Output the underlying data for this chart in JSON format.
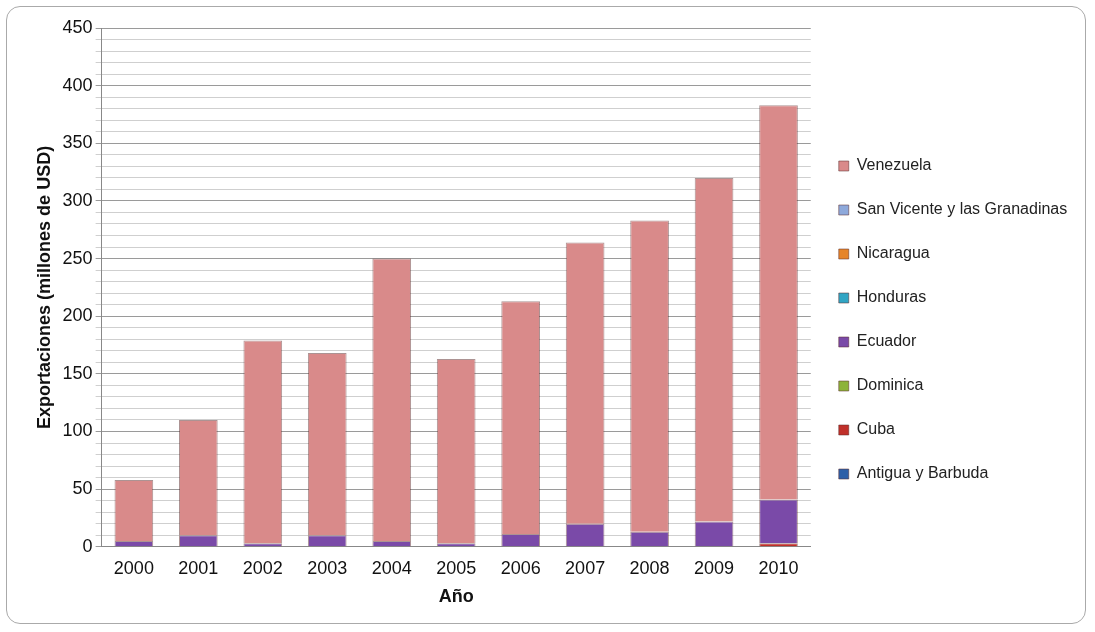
{
  "chart_data": {
    "type": "bar",
    "stacked": true,
    "xlabel": "Año",
    "ylabel": "Exportaciones (millones de USD)",
    "categories": [
      "2000",
      "2001",
      "2002",
      "2003",
      "2004",
      "2005",
      "2006",
      "2007",
      "2008",
      "2009",
      "2010"
    ],
    "series": [
      {
        "name": "Antigua y Barbuda",
        "color": "#2e5fa8",
        "values": [
          0,
          0,
          0,
          0,
          0,
          0,
          0,
          0,
          0,
          0,
          0
        ]
      },
      {
        "name": "Cuba",
        "color": "#c0302a",
        "values": [
          0,
          0,
          0,
          0,
          0,
          0,
          0,
          0,
          0,
          0,
          3
        ]
      },
      {
        "name": "Dominica",
        "color": "#8db33a",
        "values": [
          0,
          0,
          0,
          0,
          0,
          0,
          0,
          0,
          0,
          0,
          0
        ]
      },
      {
        "name": "Ecuador",
        "color": "#7a4aa8",
        "values": [
          5,
          10,
          3,
          10,
          5,
          3,
          11,
          20,
          13,
          22,
          38
        ]
      },
      {
        "name": "Honduras",
        "color": "#31a5c4",
        "values": [
          0,
          0,
          0,
          0,
          0,
          0,
          0,
          0,
          0,
          0,
          0
        ]
      },
      {
        "name": "Nicaragua",
        "color": "#e6842a",
        "values": [
          0,
          0,
          0,
          0,
          0,
          0,
          0,
          0,
          0,
          0,
          0
        ]
      },
      {
        "name": "San Vicente y las Granadinas",
        "color": "#8ea9db",
        "values": [
          0,
          0,
          0,
          0,
          0,
          0,
          0,
          0,
          0,
          0,
          0
        ]
      },
      {
        "name": "Venezuela",
        "color": "#d98a8a",
        "values": [
          53,
          100,
          176,
          158,
          245,
          160,
          202,
          244,
          270,
          298,
          342
        ]
      }
    ],
    "ylim": [
      0,
      450
    ],
    "yticks": [
      0,
      {
        "value": 10,
        "label": null
      },
      {
        "value": 20,
        "label": null
      },
      {
        "value": 30,
        "label": null
      },
      {
        "value": 40,
        "label": null
      },
      50,
      {
        "value": 60,
        "label": null
      },
      {
        "value": 70,
        "label": null
      },
      {
        "value": 80,
        "label": null
      },
      {
        "value": 90,
        "label": null
      },
      100,
      {
        "value": 110,
        "label": null
      },
      {
        "value": 120,
        "label": null
      },
      {
        "value": 130,
        "label": null
      },
      {
        "value": 140,
        "label": null
      },
      150,
      {
        "value": 160,
        "label": null
      },
      {
        "value": 170,
        "label": null
      },
      {
        "value": 180,
        "label": null
      },
      {
        "value": 190,
        "label": null
      },
      200,
      {
        "value": 210,
        "label": null
      },
      {
        "value": 220,
        "label": null
      },
      {
        "value": 230,
        "label": null
      },
      {
        "value": 240,
        "label": null
      },
      250,
      {
        "value": 260,
        "label": null
      },
      {
        "value": 270,
        "label": null
      },
      {
        "value": 280,
        "label": null
      },
      {
        "value": 290,
        "label": null
      },
      300,
      {
        "value": 310,
        "label": null
      },
      {
        "value": 320,
        "label": null
      },
      {
        "value": 330,
        "label": null
      },
      {
        "value": 340,
        "label": null
      },
      350,
      {
        "value": 360,
        "label": null
      },
      {
        "value": 370,
        "label": null
      },
      {
        "value": 380,
        "label": null
      },
      {
        "value": 390,
        "label": null
      },
      400,
      {
        "value": 410,
        "label": null
      },
      {
        "value": 420,
        "label": null
      },
      {
        "value": 430,
        "label": null
      },
      {
        "value": 440,
        "label": null
      },
      450
    ],
    "grid": "y",
    "legend": "right"
  }
}
